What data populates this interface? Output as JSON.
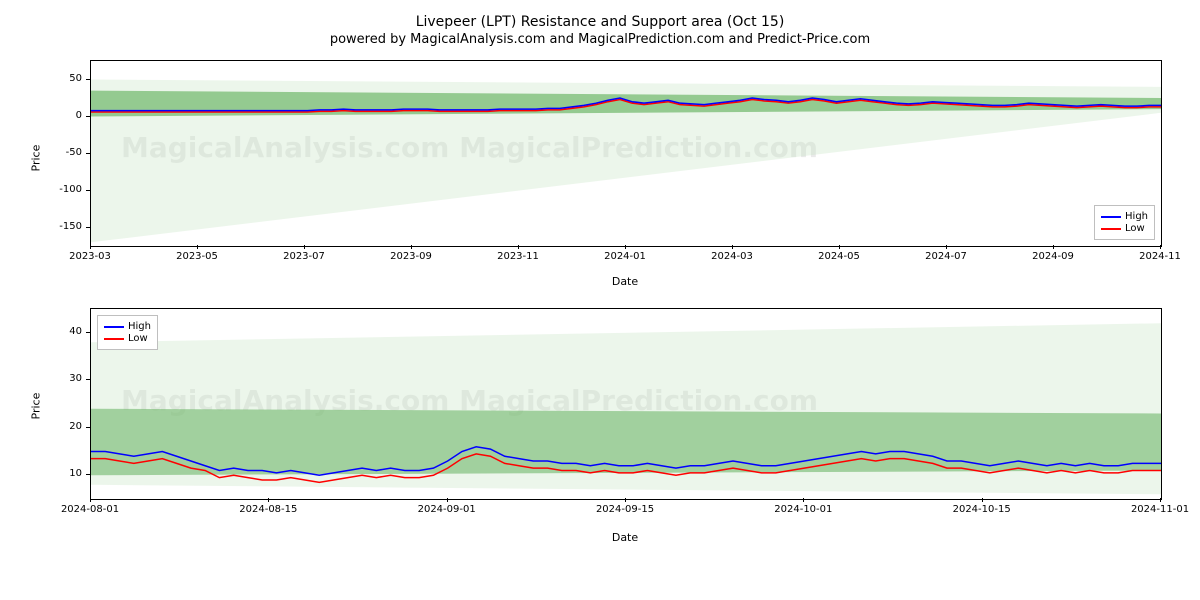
{
  "title": "Livepeer (LPT) Resistance and Support area (Oct 15)",
  "subtitle": "powered by MagicalAnalysis.com and MagicalPrediction.com and Predict-Price.com",
  "watermark_text": "MagicalAnalysis.com    MagicalPrediction.com",
  "legend": {
    "high": "High",
    "low": "Low"
  },
  "colors": {
    "high_line": "#0000ff",
    "low_line": "#ff0000",
    "band_outer": "#c9e5c7",
    "band_inner": "#6fb86a",
    "border": "#000000",
    "legend_border": "#bfbfbf",
    "background": "#ffffff"
  },
  "top_chart": {
    "type": "line-with-bands",
    "xlabel": "Date",
    "ylabel": "Price",
    "ylim": [
      -175,
      75
    ],
    "yticks": [
      -150,
      -100,
      -50,
      0,
      50
    ],
    "xticks": [
      "2023-03",
      "2023-05",
      "2023-07",
      "2023-09",
      "2023-11",
      "2024-01",
      "2024-03",
      "2024-05",
      "2024-07",
      "2024-09",
      "2024-11"
    ],
    "xlim_idx": [
      0,
      100
    ],
    "series_high": [
      8,
      8,
      8,
      8,
      8,
      8,
      8,
      8,
      8,
      8,
      8,
      8,
      8,
      8,
      8,
      8,
      8,
      8,
      8,
      9,
      9,
      10,
      9,
      9,
      9,
      9,
      10,
      10,
      10,
      9,
      9,
      9,
      9,
      9,
      10,
      10,
      10,
      10,
      11,
      11,
      13,
      15,
      18,
      22,
      25,
      20,
      18,
      20,
      22,
      18,
      17,
      16,
      18,
      20,
      22,
      25,
      23,
      22,
      20,
      22,
      25,
      23,
      20,
      22,
      24,
      22,
      20,
      18,
      17,
      18,
      20,
      19,
      18,
      17,
      16,
      15,
      15,
      16,
      18,
      17,
      16,
      15,
      14,
      15,
      16,
      15,
      14,
      14,
      15,
      15
    ],
    "series_low": [
      6,
      6,
      6,
      6,
      6,
      6,
      6,
      6,
      6,
      6,
      6,
      6,
      6,
      6,
      6,
      6,
      6,
      6,
      6,
      7,
      7,
      8,
      7,
      7,
      7,
      7,
      8,
      8,
      8,
      7,
      7,
      7,
      7,
      7,
      8,
      8,
      8,
      8,
      9,
      9,
      11,
      13,
      16,
      20,
      23,
      18,
      16,
      18,
      20,
      16,
      15,
      14,
      16,
      18,
      20,
      23,
      21,
      20,
      18,
      20,
      23,
      21,
      18,
      20,
      22,
      20,
      18,
      16,
      15,
      16,
      18,
      17,
      16,
      15,
      14,
      13,
      13,
      14,
      16,
      15,
      14,
      13,
      12,
      13,
      14,
      13,
      12,
      12,
      13,
      13
    ],
    "band_outer": {
      "top_start": 50,
      "top_end": 40,
      "bot_start": -170,
      "bot_end": 5
    },
    "band_inner": {
      "top_start": 35,
      "top_end": 25,
      "bot_start": 0,
      "bot_end": 10
    },
    "line_width": 1.5,
    "band_outer_opacity": 0.35,
    "band_inner_opacity": 0.7,
    "legend_position": "bottom-right"
  },
  "bottom_chart": {
    "type": "line-with-bands",
    "xlabel": "Date",
    "ylabel": "Price",
    "ylim": [
      5,
      45
    ],
    "yticks": [
      10,
      20,
      30,
      40
    ],
    "xticks": [
      "2024-08-01",
      "2024-08-15",
      "2024-09-01",
      "2024-09-15",
      "2024-10-01",
      "2024-10-15",
      "2024-11-01"
    ],
    "xlim_idx": [
      0,
      100
    ],
    "series_high": [
      15,
      15,
      14.5,
      14,
      14.5,
      15,
      14,
      13,
      12,
      11,
      11.5,
      11,
      11,
      10.5,
      11,
      10.5,
      10,
      10.5,
      11,
      11.5,
      11,
      11.5,
      11,
      11,
      11.5,
      13,
      15,
      16,
      15.5,
      14,
      13.5,
      13,
      13,
      12.5,
      12.5,
      12,
      12.5,
      12,
      12,
      12.5,
      12,
      11.5,
      12,
      12,
      12.5,
      13,
      12.5,
      12,
      12,
      12.5,
      13,
      13.5,
      14,
      14.5,
      15,
      14.5,
      15,
      15,
      14.5,
      14,
      13,
      13,
      12.5,
      12,
      12.5,
      13,
      12.5,
      12,
      12.5,
      12,
      12.5,
      12,
      12,
      12.5,
      12.5,
      12.5
    ],
    "series_low": [
      13.5,
      13.5,
      13,
      12.5,
      13,
      13.5,
      12.5,
      11.5,
      11,
      9.5,
      10,
      9.5,
      9,
      9,
      9.5,
      9,
      8.5,
      9,
      9.5,
      10,
      9.5,
      10,
      9.5,
      9.5,
      10,
      11.5,
      13.5,
      14.5,
      14,
      12.5,
      12,
      11.5,
      11.5,
      11,
      11,
      10.5,
      11,
      10.5,
      10.5,
      11,
      10.5,
      10,
      10.5,
      10.5,
      11,
      11.5,
      11,
      10.5,
      10.5,
      11,
      11.5,
      12,
      12.5,
      13,
      13.5,
      13,
      13.5,
      13.5,
      13,
      12.5,
      11.5,
      11.5,
      11,
      10.5,
      11,
      11.5,
      11,
      10.5,
      11,
      10.5,
      11,
      10.5,
      10.5,
      11,
      11,
      11
    ],
    "band_outer": {
      "top_start": 38,
      "top_end": 42,
      "bot_start": 8,
      "bot_end": 6
    },
    "band_inner": {
      "top_start": 24,
      "top_end": 23,
      "bot_start": 10,
      "bot_end": 11
    },
    "line_width": 1.5,
    "band_outer_opacity": 0.35,
    "band_inner_opacity": 0.6,
    "legend_position": "top-left"
  }
}
